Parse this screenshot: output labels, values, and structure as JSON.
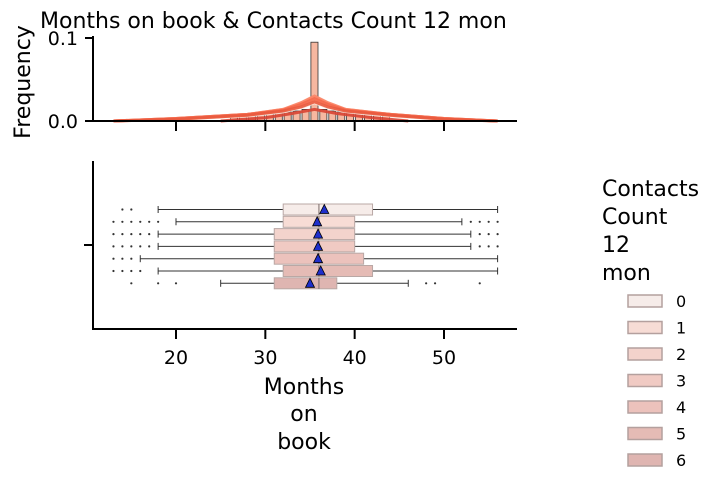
{
  "chart_data": [
    {
      "type": "histogram",
      "title": "Months on book & Contacts Count 12 mon",
      "ylabel": "Frequency",
      "xlim": [
        11,
        58
      ],
      "ylim": [
        0,
        0.1
      ],
      "yticks": [
        {
          "value": 0.0,
          "label": "0.0"
        },
        {
          "value": 0.1,
          "label": "0.1"
        }
      ],
      "xticks": [
        20,
        30,
        40,
        50
      ],
      "bins": [
        {
          "x": 26.5,
          "h": 0.006
        },
        {
          "x": 27.5,
          "h": 0.007
        },
        {
          "x": 28.5,
          "h": 0.007
        },
        {
          "x": 29.5,
          "h": 0.008
        },
        {
          "x": 30.5,
          "h": 0.009
        },
        {
          "x": 31.5,
          "h": 0.01
        },
        {
          "x": 32.5,
          "h": 0.011
        },
        {
          "x": 33.5,
          "h": 0.012
        },
        {
          "x": 34.5,
          "h": 0.014
        },
        {
          "x": 35.5,
          "h": 0.095
        },
        {
          "x": 36.5,
          "h": 0.014
        },
        {
          "x": 37.5,
          "h": 0.012
        },
        {
          "x": 38.5,
          "h": 0.011
        },
        {
          "x": 39.5,
          "h": 0.01
        },
        {
          "x": 40.5,
          "h": 0.009
        },
        {
          "x": 41.5,
          "h": 0.008
        },
        {
          "x": 42.5,
          "h": 0.007
        },
        {
          "x": 43.5,
          "h": 0.006
        }
      ],
      "kde": [
        {
          "name": "0",
          "color": "#fde8de",
          "x": [
            13,
            20,
            28,
            32,
            34,
            35.5,
            37,
            39,
            44,
            50,
            56
          ],
          "y": [
            0,
            0.002,
            0.006,
            0.011,
            0.016,
            0.022,
            0.016,
            0.011,
            0.006,
            0.002,
            0
          ]
        },
        {
          "name": "1",
          "color": "#fcbba0",
          "x": [
            13,
            20,
            28,
            32,
            34,
            35.5,
            37,
            39,
            44,
            50,
            56
          ],
          "y": [
            0,
            0.002,
            0.007,
            0.013,
            0.019,
            0.026,
            0.019,
            0.013,
            0.007,
            0.002,
            0
          ]
        },
        {
          "name": "2",
          "color": "#fc9f82",
          "x": [
            13,
            20,
            28,
            32,
            34,
            35.5,
            37,
            39,
            44,
            50,
            56
          ],
          "y": [
            0,
            0.003,
            0.008,
            0.014,
            0.021,
            0.029,
            0.021,
            0.014,
            0.008,
            0.003,
            0
          ]
        },
        {
          "name": "3",
          "color": "#fb8466",
          "x": [
            13,
            20,
            28,
            32,
            34,
            35.5,
            37,
            39,
            44,
            50,
            56
          ],
          "y": [
            0,
            0.003,
            0.008,
            0.014,
            0.022,
            0.03,
            0.022,
            0.014,
            0.008,
            0.003,
            0
          ]
        },
        {
          "name": "4",
          "color": "#f4694d",
          "x": [
            13,
            20,
            28,
            32,
            34,
            35.5,
            37,
            39,
            44,
            50,
            56
          ],
          "y": [
            0,
            0.003,
            0.008,
            0.013,
            0.02,
            0.027,
            0.02,
            0.013,
            0.008,
            0.003,
            0
          ]
        },
        {
          "name": "5",
          "color": "#e95a3e",
          "x": [
            13,
            20,
            28,
            32,
            34,
            35.5,
            37,
            39,
            44,
            50,
            56
          ],
          "y": [
            0,
            0.002,
            0.007,
            0.012,
            0.017,
            0.023,
            0.017,
            0.012,
            0.007,
            0.002,
            0
          ]
        },
        {
          "name": "6",
          "color": "#d84433",
          "x": [
            25,
            30,
            33,
            35.5,
            38,
            42,
            46
          ],
          "y": [
            0,
            0.004,
            0.009,
            0.014,
            0.009,
            0.004,
            0
          ]
        }
      ]
    },
    {
      "type": "boxplot",
      "xlabel": "Months\non\nbook",
      "xlim": [
        11,
        58
      ],
      "xticks": [
        20,
        30,
        40,
        50
      ],
      "legend_title": "Contacts\nCount\n12\nmon",
      "legend_position": "right",
      "series": [
        {
          "name": "0",
          "color": "#f6ece9",
          "whisker_low": 18,
          "q1": 32,
          "median": 36,
          "q3": 42,
          "whisker_high": 56,
          "mean": 36.6,
          "outliers": [
            14,
            15
          ]
        },
        {
          "name": "1",
          "color": "#f7dcd5",
          "whisker_low": 20,
          "q1": 32,
          "median": 36,
          "q3": 40,
          "whisker_high": 52,
          "mean": 35.8,
          "outliers": [
            13,
            14,
            15,
            16,
            17,
            18,
            53,
            54,
            55,
            56
          ]
        },
        {
          "name": "2",
          "color": "#f3d3cc",
          "whisker_low": 18,
          "q1": 31,
          "median": 36,
          "q3": 40,
          "whisker_high": 53,
          "mean": 35.9,
          "outliers": [
            13,
            14,
            15,
            16,
            17,
            54,
            55,
            56
          ]
        },
        {
          "name": "3",
          "color": "#f0cac3",
          "whisker_low": 18,
          "q1": 31,
          "median": 36,
          "q3": 40,
          "whisker_high": 53,
          "mean": 35.9,
          "outliers": [
            13,
            14,
            15,
            16,
            17,
            54,
            55,
            56
          ]
        },
        {
          "name": "4",
          "color": "#ecc2bc",
          "whisker_low": 16,
          "q1": 31,
          "median": 36,
          "q3": 41,
          "whisker_high": 56,
          "mean": 35.9,
          "outliers": [
            13,
            14,
            15
          ]
        },
        {
          "name": "5",
          "color": "#e5bbb5",
          "whisker_low": 18,
          "q1": 32,
          "median": 36,
          "q3": 42,
          "whisker_high": 56,
          "mean": 36.2,
          "outliers": [
            13,
            14,
            15,
            16
          ]
        },
        {
          "name": "6",
          "color": "#dfb5b1",
          "whisker_low": 25,
          "q1": 31,
          "median": 36,
          "q3": 38,
          "whisker_high": 46,
          "mean": 35,
          "outliers": [
            15,
            18,
            20,
            48,
            49,
            54
          ]
        }
      ]
    }
  ]
}
